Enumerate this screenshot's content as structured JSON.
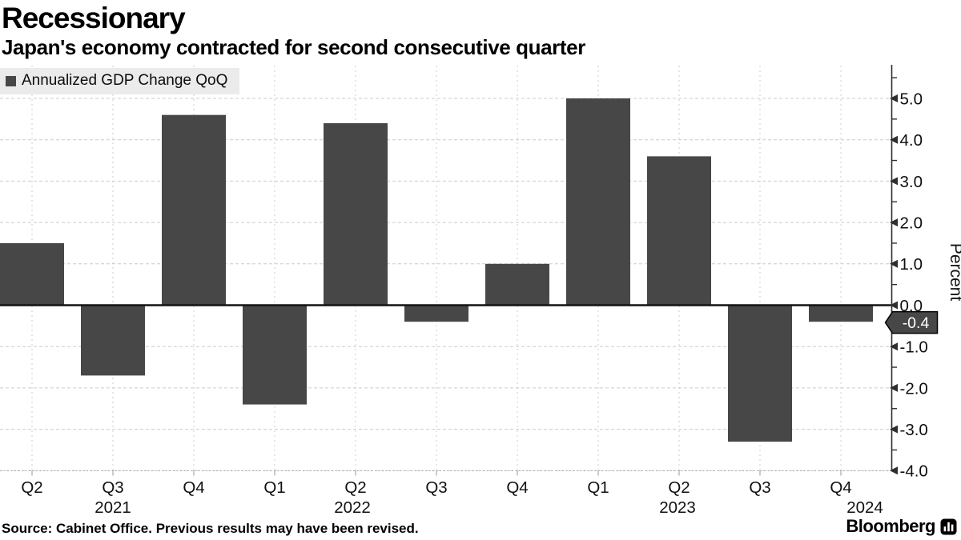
{
  "header": {
    "title": "Recessionary",
    "subtitle": "Japan's economy contracted for second consecutive quarter"
  },
  "legend": {
    "label": "Annualized GDP Change QoQ",
    "swatch_color": "#474747"
  },
  "source": {
    "text": "Source: Cabinet Office. Previous results may have been revised."
  },
  "branding": {
    "logo_text": "Bloomberg"
  },
  "chart_data": {
    "type": "bar",
    "title": "Recessionary",
    "series_name": "Annualized GDP Change QoQ",
    "categories": [
      "Q2",
      "Q3",
      "Q4",
      "Q1",
      "Q2",
      "Q3",
      "Q4",
      "Q1",
      "Q2",
      "Q3",
      "Q4"
    ],
    "year_labels": [
      {
        "label": "2021",
        "under_index": 1
      },
      {
        "label": "2022",
        "under_index": 4
      },
      {
        "label": "2023",
        "under_index": 8
      },
      {
        "label": "2024",
        "under_index": 10
      }
    ],
    "values": [
      1.5,
      -1.7,
      4.6,
      -2.4,
      4.4,
      -0.4,
      1.0,
      5.0,
      3.6,
      -3.3,
      -0.4
    ],
    "xlabel": "",
    "ylabel": "Percent",
    "ylim": [
      -4.3,
      5.8
    ],
    "y_major_ticks": [
      5.0,
      4.0,
      3.0,
      2.0,
      1.0,
      0.0,
      -1.0,
      -2.0,
      -3.0,
      -4.0
    ],
    "y_tick_labels": [
      "5.0",
      "4.0",
      "3.0",
      "2.0",
      "1.0",
      "0.0",
      "-1.0",
      "-2.0",
      "-3.0",
      "-4.0"
    ],
    "y_minor_step": 0.5,
    "last_value_callout": "-0.4",
    "bar_color": "#474747",
    "grid": true,
    "legend_position": "top-left",
    "axis_side": "right"
  }
}
